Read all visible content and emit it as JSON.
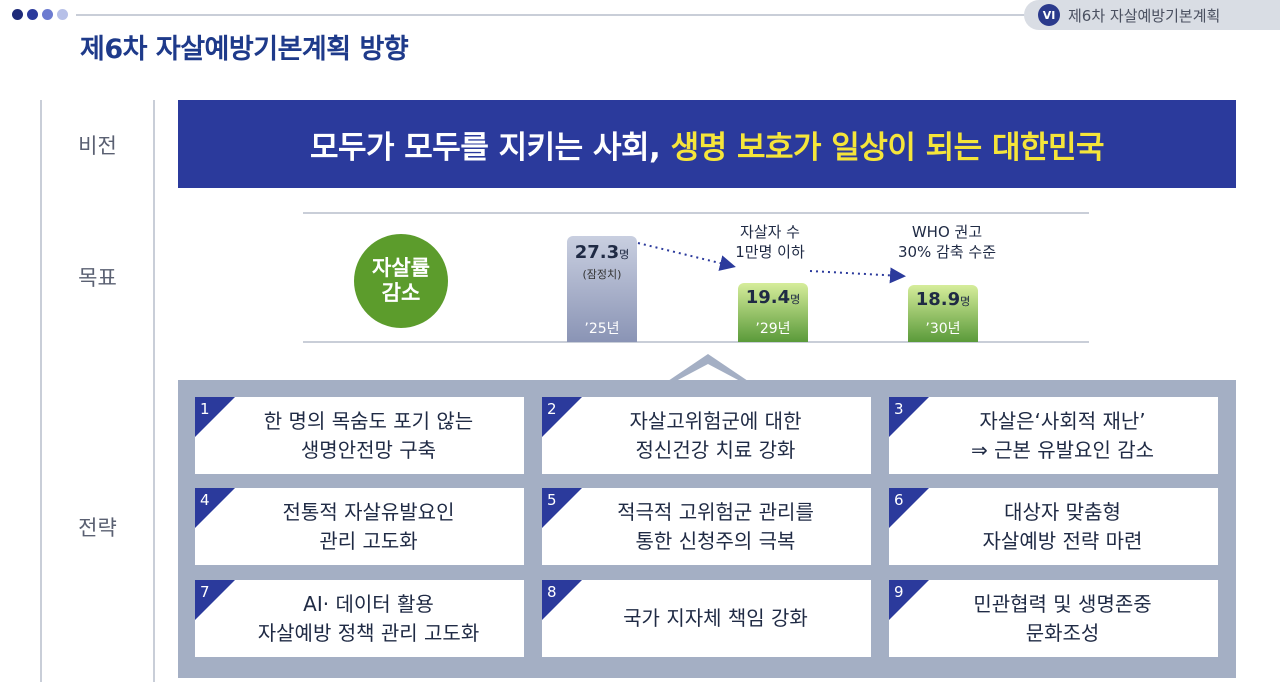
{
  "header": {
    "chapter_badge": "VI",
    "chapter_title": "제6차 자살예방기본계획",
    "page_title": "제6차 자살예방기본계획 방향",
    "dot_colors": [
      "#1e2a78",
      "#2b3a9c",
      "#6c7bd0",
      "#b7c0e8"
    ]
  },
  "labels": {
    "vision": "비전",
    "goal": "목표",
    "strategy": "전략"
  },
  "vision": {
    "text_plain": "모두가 모두를 지키는 사회, ",
    "text_highlight": "생명 보호가 일상이 되는 대한민국"
  },
  "goal": {
    "circle_line1": "자살률",
    "circle_line2": "감소",
    "chart_data": {
      "type": "bar",
      "categories": [
        "’25년",
        "’29년",
        "’30년"
      ],
      "values": [
        27.3,
        19.4,
        18.9
      ],
      "unit": "명",
      "value_notes": [
        "(잠정치)",
        "",
        ""
      ]
    },
    "annotation_29": [
      "자살자 수",
      "1만명 이하"
    ],
    "annotation_30": [
      "WHO 권고",
      "30% 감축 수준"
    ]
  },
  "strategies": [
    {
      "num": "1",
      "text": "한 명의 목숨도 포기 않는\n생명안전망 구축"
    },
    {
      "num": "2",
      "text": "자살고위험군에 대한\n정신건강 치료 강화"
    },
    {
      "num": "3",
      "text": "자살은‘사회적 재난’\n⇒ 근본 유발요인 감소"
    },
    {
      "num": "4",
      "text": "전통적 자살유발요인\n관리 고도화"
    },
    {
      "num": "5",
      "text": "적극적 고위험군 관리를\n통한 신청주의 극복"
    },
    {
      "num": "6",
      "text": "대상자 맞춤형\n자살예방 전략 마련"
    },
    {
      "num": "7",
      "text": "AI· 데이터 활용\n자살예방 정책 관리 고도화"
    },
    {
      "num": "8",
      "text": "국가 지자체 책임 강화"
    },
    {
      "num": "9",
      "text": "민관협력 및 생명존중\n문화조성"
    }
  ]
}
